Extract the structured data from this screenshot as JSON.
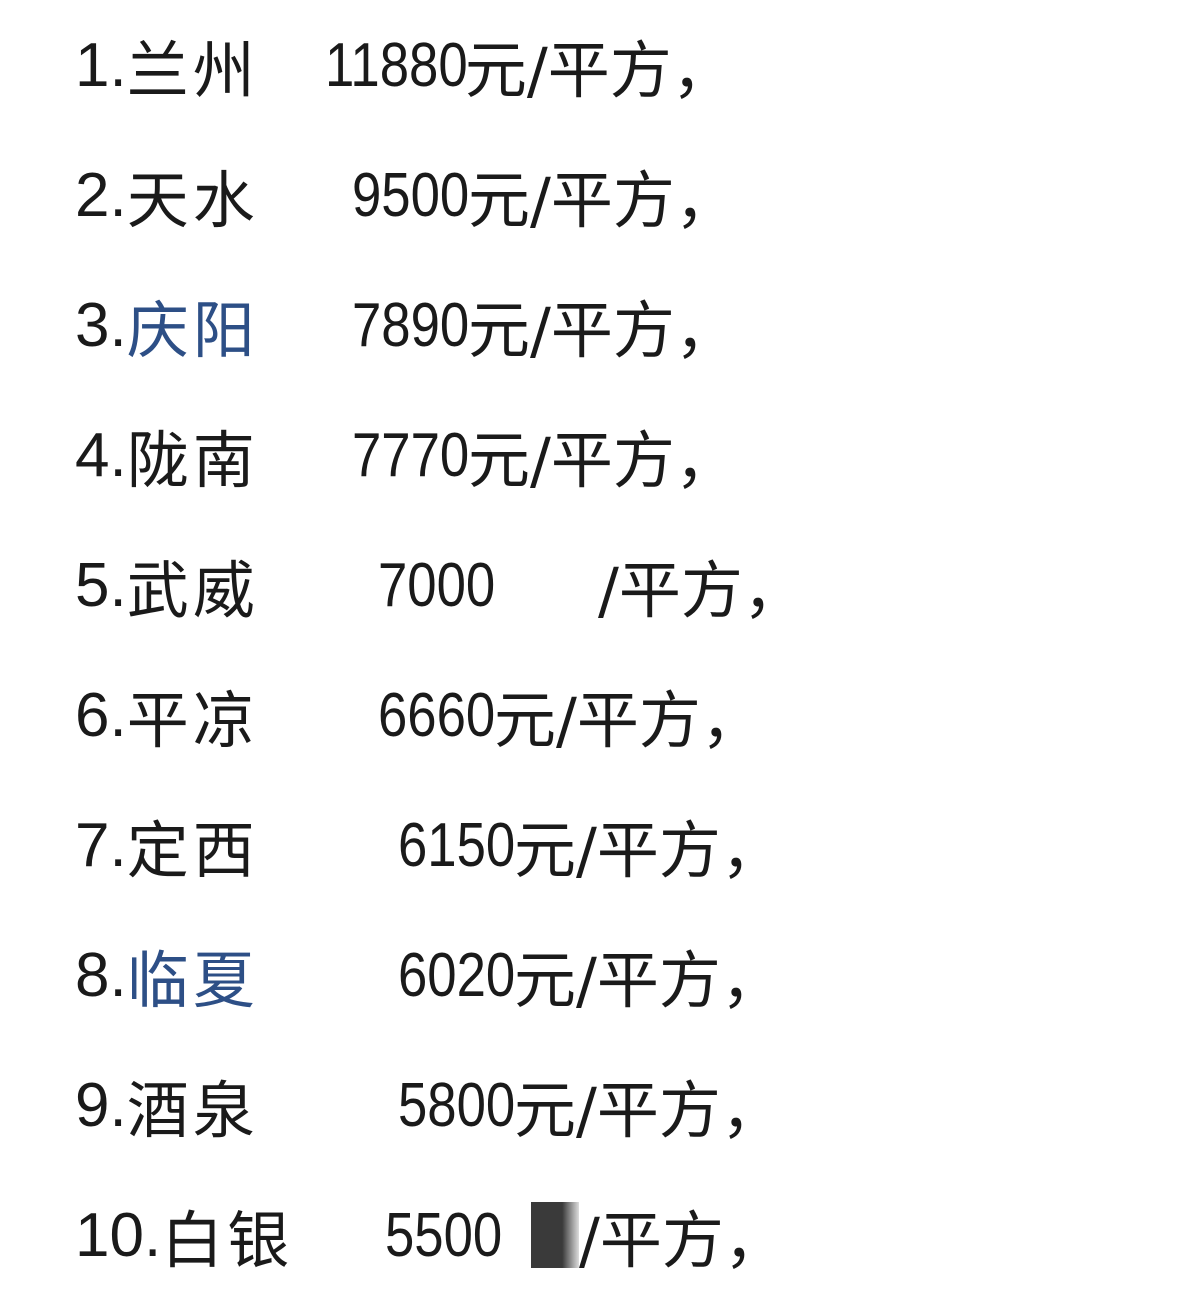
{
  "rows": [
    {
      "idx": "1.",
      "name": "兰州",
      "value": "11880",
      "unit": "元/平方，"
    },
    {
      "idx": "2.",
      "name": "天水",
      "value": "9500",
      "unit": "元/平方，"
    },
    {
      "idx": "3.",
      "name": "庆阳",
      "value": "7890",
      "unit": "元/平方，"
    },
    {
      "idx": "4.",
      "name": "陇南",
      "value": "7770",
      "unit": "元/平方，"
    },
    {
      "idx": "5.",
      "name": "武威",
      "value": "7000",
      "unit": "/平方，"
    },
    {
      "idx": "6.",
      "name": "平凉",
      "value": "6660",
      "unit": "元/平方，"
    },
    {
      "idx": "7.",
      "name": "定西",
      "value": "6150",
      "unit": "元/平方，"
    },
    {
      "idx": "8.",
      "name": "临夏",
      "value": "6020",
      "unit": "元/平方，"
    },
    {
      "idx": "9.",
      "name": "酒泉",
      "value": "5800",
      "unit": "元/平方，"
    },
    {
      "idx": "10.",
      "name": "白银",
      "value": "5500",
      "unit": "/平方，"
    }
  ],
  "colors": {
    "text": "#1a1a1a",
    "link_name": "#2d4f86"
  }
}
